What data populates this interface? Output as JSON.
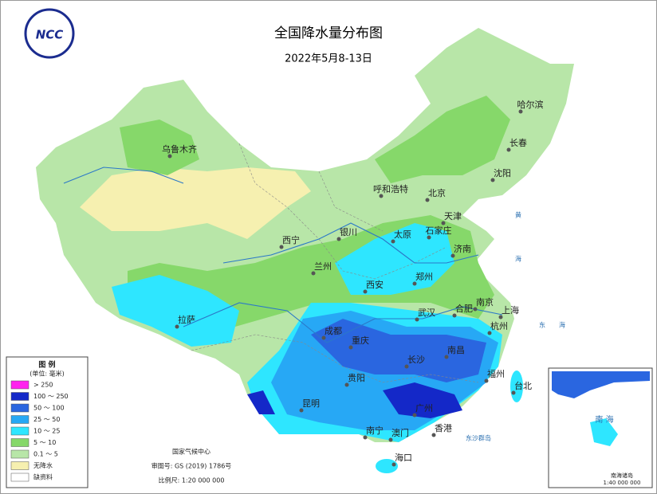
{
  "header": {
    "title": "全国降水量分布图",
    "date": "2022年5月8-13日",
    "logo": "NCC"
  },
  "legend": {
    "title": "图 例",
    "unit": "(单位: 毫米)",
    "items": [
      {
        "label": "> 250",
        "color": "#ff22ee"
      },
      {
        "label": "100 ～ 250",
        "color": "#1428c8"
      },
      {
        "label": "50 ～ 100",
        "color": "#2a66e0"
      },
      {
        "label": "25 ～ 50",
        "color": "#27a8f5"
      },
      {
        "label": "10 ～ 25",
        "color": "#2ee6ff"
      },
      {
        "label": "5 ～ 10",
        "color": "#86d86a"
      },
      {
        "label": "0.1 ～ 5",
        "color": "#b8e6a8"
      },
      {
        "label": "无降水",
        "color": "#f6f0b0"
      },
      {
        "label": "缺资料",
        "color": "#ffffff"
      }
    ]
  },
  "cities": [
    "乌鲁木齐",
    "哈尔滨",
    "长春",
    "沈阳",
    "呼和浩特",
    "北京",
    "天津",
    "银川",
    "西宁",
    "太原",
    "石家庄",
    "济南",
    "兰州",
    "郑州",
    "西安",
    "南京",
    "上海",
    "合肥",
    "武汉",
    "杭州",
    "拉萨",
    "成都",
    "重庆",
    "长沙",
    "南昌",
    "福州",
    "台北",
    "贵阳",
    "昆明",
    "广州",
    "南宁",
    "澳门",
    "香港",
    "海口"
  ],
  "seas": [
    "黄",
    "海",
    "东",
    "海",
    "东沙群岛"
  ],
  "footer": {
    "agency": "国家气候中心",
    "approval": "审图号: GS (2019) 1786号",
    "scale": "比例尺: 1:20 000 000"
  },
  "inset": {
    "sea": "南 海",
    "islands": "南海诸岛",
    "scale": "1:40 000 000"
  }
}
